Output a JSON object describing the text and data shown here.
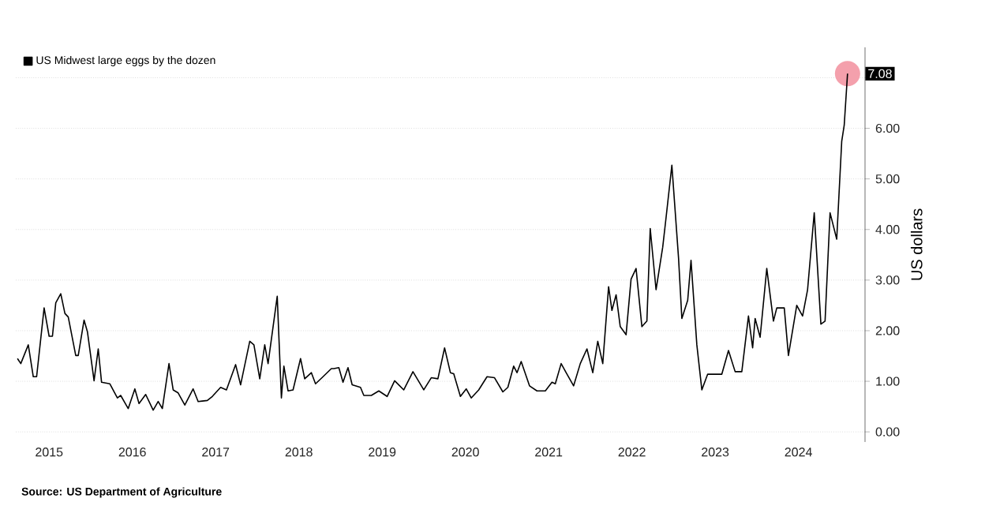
{
  "chart_data": {
    "type": "line",
    "annotations": [
      "Source: US Department of Agriculture",
      {
        "text": "7.08",
        "x": 2025.09,
        "y": 7.08
      }
    ],
    "ylabel": "US dollars",
    "x": [
      2015.12,
      2015.16,
      2015.25,
      2015.31,
      2015.35,
      2015.44,
      2015.5,
      2015.54,
      2015.58,
      2015.64,
      2015.69,
      2015.73,
      2015.82,
      2015.85,
      2015.92,
      2015.96,
      2016.04,
      2016.09,
      2016.13,
      2016.23,
      2016.32,
      2016.36,
      2016.45,
      2016.53,
      2016.58,
      2016.66,
      2016.75,
      2016.81,
      2016.86,
      2016.94,
      2016.99,
      2017.05,
      2017.13,
      2017.23,
      2017.29,
      2017.4,
      2017.46,
      2017.56,
      2017.63,
      2017.74,
      2017.8,
      2017.91,
      2017.96,
      2018.03,
      2018.09,
      2018.13,
      2018.24,
      2018.29,
      2018.32,
      2018.37,
      2018.43,
      2018.52,
      2018.57,
      2018.65,
      2018.7,
      2018.79,
      2018.89,
      2018.92,
      2018.98,
      2019.03,
      2019.09,
      2019.14,
      2019.24,
      2019.28,
      2019.37,
      2019.46,
      2019.56,
      2019.65,
      2019.76,
      2019.87,
      2020.0,
      2020.09,
      2020.17,
      2020.25,
      2020.32,
      2020.36,
      2020.44,
      2020.51,
      2020.57,
      2020.66,
      2020.76,
      2020.85,
      2020.95,
      2021.01,
      2021.08,
      2021.12,
      2021.17,
      2021.27,
      2021.36,
      2021.46,
      2021.54,
      2021.58,
      2021.65,
      2021.71,
      2021.8,
      2021.88,
      2021.96,
      2022.03,
      2022.09,
      2022.15,
      2022.22,
      2022.26,
      2022.31,
      2022.36,
      2022.43,
      2022.49,
      2022.55,
      2022.62,
      2022.68,
      2022.72,
      2022.79,
      2022.87,
      2022.91,
      2022.98,
      2023.06,
      2023.1,
      2023.17,
      2023.21,
      2023.28,
      2023.34,
      2023.41,
      2023.58,
      2023.66,
      2023.74,
      2023.82,
      2023.9,
      2023.95,
      2023.98,
      2024.04,
      2024.12,
      2024.2,
      2024.24,
      2024.33,
      2024.38,
      2024.48,
      2024.55,
      2024.61,
      2024.69,
      2024.77,
      2024.82,
      2024.88,
      2024.96,
      2025.02,
      2025.05,
      2025.09
    ],
    "series": [
      {
        "name": "US Midwest large eggs by the dozen",
        "color": "#000000",
        "values": [
          1.45,
          1.35,
          1.72,
          1.09,
          1.09,
          2.45,
          1.89,
          1.89,
          2.55,
          2.73,
          2.34,
          2.27,
          1.51,
          1.51,
          2.21,
          1.98,
          1.01,
          1.64,
          0.98,
          0.95,
          0.67,
          0.72,
          0.46,
          0.85,
          0.56,
          0.74,
          0.43,
          0.6,
          0.46,
          1.35,
          0.83,
          0.77,
          0.53,
          0.85,
          0.6,
          0.62,
          0.7,
          0.88,
          0.83,
          1.33,
          0.93,
          1.79,
          1.72,
          1.05,
          1.72,
          1.35,
          2.68,
          0.67,
          1.3,
          0.81,
          0.83,
          1.45,
          1.05,
          1.17,
          0.95,
          1.09,
          1.25,
          1.25,
          1.27,
          0.98,
          1.27,
          0.93,
          0.88,
          0.72,
          0.72,
          0.81,
          0.7,
          1.01,
          0.83,
          1.19,
          0.83,
          1.07,
          1.05,
          1.66,
          1.17,
          1.15,
          0.7,
          0.85,
          0.67,
          0.83,
          1.09,
          1.07,
          0.79,
          0.88,
          1.3,
          1.17,
          1.39,
          0.91,
          0.81,
          0.81,
          0.98,
          0.95,
          1.35,
          1.17,
          0.91,
          1.35,
          1.64,
          1.17,
          1.79,
          1.35,
          2.87,
          2.4,
          2.71,
          2.08,
          1.92,
          3.02,
          3.23,
          2.08,
          2.19,
          4.02,
          2.81,
          3.65,
          4.23,
          5.27,
          3.44,
          2.24,
          2.6,
          3.39,
          1.72,
          0.83,
          1.14,
          1.14,
          1.61,
          1.19,
          1.19,
          2.29,
          1.66,
          2.24,
          1.87,
          3.23,
          2.19,
          2.45,
          2.45,
          1.51,
          2.5,
          2.29,
          2.81,
          4.33,
          2.13,
          2.19,
          4.33,
          3.81,
          5.74,
          6.06,
          7.08
        ]
      }
    ],
    "xlim": [
      2015.1,
      2025.3
    ],
    "xticks": [
      {
        "value": 2015.5,
        "label": "2015"
      },
      {
        "value": 2016.5,
        "label": "2016"
      },
      {
        "value": 2017.5,
        "label": "2017"
      },
      {
        "value": 2018.5,
        "label": "2018"
      },
      {
        "value": 2019.5,
        "label": "2019"
      },
      {
        "value": 2020.5,
        "label": "2020"
      },
      {
        "value": 2021.5,
        "label": "2021"
      },
      {
        "value": 2022.5,
        "label": "2022"
      },
      {
        "value": 2023.5,
        "label": "2023"
      },
      {
        "value": 2024.5,
        "label": "2024"
      }
    ],
    "ylim": [
      -0.2,
      7.6
    ],
    "yticks": [
      {
        "value": 0,
        "label": "0.00"
      },
      {
        "value": 1,
        "label": "1.00"
      },
      {
        "value": 2,
        "label": "2.00"
      },
      {
        "value": 3,
        "label": "3.00"
      },
      {
        "value": 4,
        "label": "4.00"
      },
      {
        "value": 5,
        "label": "5.00"
      },
      {
        "value": 6,
        "label": "6.00"
      },
      {
        "value": 7,
        "label": null
      }
    ],
    "grid": "y",
    "legend": "top left",
    "marker": "none",
    "line_style": "solid"
  }
}
